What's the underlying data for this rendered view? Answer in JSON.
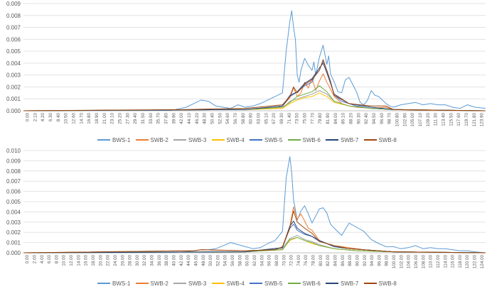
{
  "chart_data": [
    {
      "type": "line",
      "title": "",
      "xlabel": "",
      "ylabel": "",
      "ylim": [
        0,
        0.009
      ],
      "y_ticks": [
        "0.000",
        "0.001",
        "0.002",
        "0.003",
        "0.004",
        "0.005",
        "0.006",
        "0.007",
        "0.008",
        "0.009"
      ],
      "x_range": [
        0,
        124.9
      ],
      "x_ticks": [
        "0.00",
        "2.10",
        "4.20",
        "6.30",
        "8.40",
        "10.50",
        "12.60",
        "14.70",
        "16.80",
        "18.90",
        "21.00",
        "23.10",
        "25.20",
        "27.30",
        "29.40",
        "31.50",
        "33.60",
        "35.70",
        "37.80",
        "39.90",
        "42.00",
        "44.10",
        "46.20",
        "48.30",
        "50.40",
        "52.50",
        "54.60",
        "56.70",
        "58.80",
        "60.90",
        "63.00",
        "65.10",
        "67.20",
        "69.30",
        "71.40",
        "73.50",
        "75.60",
        "77.70",
        "79.80",
        "81.90",
        "84.00",
        "86.10",
        "88.20",
        "90.30",
        "92.40",
        "94.50",
        "96.60",
        "98.70",
        "100.80",
        "102.90",
        "105.00",
        "107.10",
        "109.20",
        "111.30",
        "113.40",
        "115.50",
        "117.60",
        "119.70",
        "121.80",
        "123.90"
      ],
      "legend_position": "bottom",
      "grid": "horizontal",
      "series": [
        {
          "name": "BWS-1",
          "color": "#5b9bd5",
          "x": [
            0,
            40,
            44,
            46,
            48,
            50,
            52,
            54,
            56,
            58,
            60,
            62,
            64,
            66,
            68,
            70,
            71,
            72,
            72.5,
            73,
            73.5,
            74,
            74.5,
            75,
            76,
            77,
            78,
            78.5,
            79,
            80,
            81,
            82,
            82.5,
            83,
            84,
            85,
            86,
            87,
            88,
            89,
            90,
            91,
            92,
            93,
            94,
            95,
            96,
            97,
            98,
            99,
            100,
            102,
            104,
            106,
            108,
            110,
            112,
            114,
            116,
            118,
            120,
            122,
            124.9
          ],
          "y": [
            0,
            3e-05,
            0.0003,
            0.0006,
            0.0009,
            0.0008,
            0.0004,
            0.0003,
            0.0002,
            0.0005,
            0.0003,
            0.0004,
            0.0006,
            0.0009,
            0.0012,
            0.0015,
            0.005,
            0.0075,
            0.0084,
            0.007,
            0.006,
            0.003,
            0.0024,
            0.0034,
            0.0044,
            0.0038,
            0.0034,
            0.0041,
            0.003,
            0.0045,
            0.0055,
            0.0039,
            0.0046,
            0.0031,
            0.0024,
            0.0016,
            0.0015,
            0.0026,
            0.0028,
            0.0022,
            0.0016,
            0.0007,
            0.0005,
            0.0009,
            0.0017,
            0.0013,
            0.0012,
            0.0009,
            0.0006,
            0.0004,
            0.0003,
            0.0005,
            0.0006,
            0.0007,
            0.0005,
            0.0006,
            0.0005,
            0.0005,
            0.0003,
            0.0002,
            0.0005,
            0.0003,
            0.0002
          ]
        },
        {
          "name": "SWB-2",
          "color": "#ed7d31",
          "x": [
            0,
            60,
            68,
            70,
            72,
            73,
            74,
            75,
            76,
            77,
            78,
            79,
            80,
            81,
            82,
            84,
            86,
            88,
            90,
            94,
            98,
            100,
            106,
            124.9
          ],
          "y": [
            0,
            0.0001,
            0.0002,
            0.0004,
            0.0011,
            0.0019,
            0.0012,
            0.0015,
            0.0024,
            0.0019,
            0.0027,
            0.0017,
            0.0025,
            0.0031,
            0.0024,
            0.0012,
            0.0006,
            0.0004,
            0.0003,
            0.0002,
            0.0003,
            0.0001,
            5e-05,
            0
          ]
        },
        {
          "name": "SWB-3",
          "color": "#a5a5a5",
          "x": [
            0,
            60,
            70,
            72,
            74,
            76,
            78,
            80,
            82,
            84,
            88,
            94,
            100,
            124.9
          ],
          "y": [
            0,
            0.0001,
            0.0002,
            0.0008,
            0.001,
            0.0012,
            0.0014,
            0.0017,
            0.0014,
            0.0008,
            0.0004,
            0.0002,
            0.0001,
            0
          ]
        },
        {
          "name": "SWB-4",
          "color": "#ffc000",
          "x": [
            0,
            60,
            70,
            72,
            74,
            76,
            78,
            80,
            82,
            84,
            88,
            94,
            100,
            124.9
          ],
          "y": [
            0,
            0.0001,
            0.0002,
            0.0006,
            0.0009,
            0.0011,
            0.0012,
            0.0015,
            0.0012,
            0.0007,
            0.0004,
            0.0002,
            0.0001,
            0
          ]
        },
        {
          "name": "SWB-5",
          "color": "#4472c4",
          "x": [
            0,
            60,
            70,
            72,
            74,
            76,
            78,
            79,
            80,
            81,
            82,
            83,
            84,
            86,
            88,
            90,
            94,
            100,
            124.9
          ],
          "y": [
            0,
            0.0001,
            0.0004,
            0.0013,
            0.0016,
            0.0021,
            0.0024,
            0.0031,
            0.0034,
            0.0042,
            0.0034,
            0.0025,
            0.0013,
            0.0008,
            0.0006,
            0.0004,
            0.0002,
            0.0001,
            0
          ]
        },
        {
          "name": "SWB-6",
          "color": "#70ad47",
          "x": [
            0,
            60,
            70,
            72,
            74,
            76,
            78,
            80,
            82,
            84,
            88,
            94,
            100,
            124.9
          ],
          "y": [
            0,
            0.0001,
            0.0003,
            0.0007,
            0.0012,
            0.0014,
            0.0016,
            0.0021,
            0.0016,
            0.0008,
            0.0004,
            0.0002,
            0.0001,
            0
          ]
        },
        {
          "name": "SWB-7",
          "color": "#264478",
          "x": [
            0,
            60,
            70,
            72,
            74,
            76,
            78,
            80,
            81,
            82,
            84,
            88,
            94,
            100,
            124.9
          ],
          "y": [
            0,
            0.0001,
            0.0004,
            0.0012,
            0.0016,
            0.0023,
            0.0027,
            0.0036,
            0.004,
            0.0032,
            0.0014,
            0.0006,
            0.0003,
            0.0001,
            0
          ]
        },
        {
          "name": "SWB-8",
          "color": "#9e480e",
          "x": [
            0,
            44,
            50,
            60,
            70,
            72,
            73,
            74,
            76,
            78,
            80,
            81,
            82,
            84,
            88,
            94,
            98,
            100,
            124.9
          ],
          "y": [
            0,
            0.0001,
            0.00015,
            0.0002,
            0.0005,
            0.0012,
            0.002,
            0.0015,
            0.0022,
            0.0026,
            0.0034,
            0.0043,
            0.0034,
            0.0013,
            0.0006,
            0.0004,
            0.0004,
            0.0001,
            0
          ]
        }
      ]
    },
    {
      "type": "line",
      "title": "",
      "xlabel": "",
      "ylabel": "",
      "ylim": [
        0,
        0.01
      ],
      "y_ticks": [
        "0.000",
        "0.001",
        "0.002",
        "0.003",
        "0.004",
        "0.005",
        "0.006",
        "0.007",
        "0.008",
        "0.009",
        "0.010"
      ],
      "x_range": [
        0,
        124.9
      ],
      "x_ticks": [
        "0.00",
        "2.00",
        "4.00",
        "6.00",
        "8.00",
        "10.00",
        "12.00",
        "14.00",
        "16.00",
        "18.00",
        "20.00",
        "22.00",
        "24.00",
        "26.00",
        "28.00",
        "30.00",
        "32.00",
        "34.00",
        "36.00",
        "38.00",
        "40.00",
        "42.00",
        "44.00",
        "46.00",
        "48.00",
        "50.00",
        "52.00",
        "54.00",
        "56.00",
        "58.00",
        "60.00",
        "62.00",
        "64.00",
        "66.00",
        "68.00",
        "70.00",
        "72.00",
        "74.00",
        "76.00",
        "78.00",
        "80.00",
        "82.00",
        "84.00",
        "86.00",
        "88.00",
        "90.00",
        "92.00",
        "94.00",
        "96.00",
        "98.00",
        "100.00",
        "102.00",
        "104.00",
        "106.00",
        "108.00",
        "110.00",
        "112.00",
        "114.00",
        "116.00",
        "118.00",
        "120.00",
        "122.00",
        "124.00"
      ],
      "legend_position": "bottom",
      "grid": "horizontal",
      "series": [
        {
          "name": "BWS-1",
          "color": "#5b9bd5",
          "x": [
            0,
            40,
            44,
            46,
            48,
            50,
            52,
            54,
            56,
            58,
            60,
            62,
            64,
            66,
            68,
            70,
            71,
            72,
            72.5,
            73,
            74,
            75,
            76,
            77,
            78,
            79,
            80,
            81,
            82,
            83,
            84,
            86,
            88,
            90,
            92,
            94,
            96,
            98,
            100,
            102,
            104,
            106,
            108,
            110,
            112,
            114,
            116,
            118,
            120,
            122,
            124.9
          ],
          "y": [
            0,
            3e-05,
            0.0001,
            0.0002,
            0.0003,
            0.0003,
            0.0004,
            0.0007,
            0.001,
            0.0008,
            0.0006,
            0.0004,
            0.0005,
            0.0009,
            0.0012,
            0.0021,
            0.0073,
            0.0094,
            0.0078,
            0.0052,
            0.0032,
            0.0041,
            0.0046,
            0.0038,
            0.0029,
            0.0036,
            0.0043,
            0.0044,
            0.0039,
            0.0028,
            0.0024,
            0.0017,
            0.0029,
            0.0025,
            0.0021,
            0.0013,
            0.0009,
            0.0006,
            0.0006,
            0.0004,
            0.0005,
            0.0007,
            0.0004,
            0.0005,
            0.0004,
            0.0004,
            0.0003,
            0.0002,
            0.0002,
            0.0001,
            0
          ]
        },
        {
          "name": "SWB-2",
          "color": "#ed7d31",
          "x": [
            0,
            46,
            48,
            60,
            68,
            70,
            72,
            73,
            74,
            75,
            76,
            77,
            78,
            80,
            82,
            84,
            88,
            92,
            96,
            100,
            124.9
          ],
          "y": [
            0,
            0.0002,
            0.0003,
            0.0002,
            0.0003,
            0.0006,
            0.0026,
            0.0045,
            0.0033,
            0.0038,
            0.0031,
            0.0024,
            0.0022,
            0.0012,
            0.0009,
            0.0007,
            0.0005,
            0.0003,
            0.0002,
            0.0001,
            0
          ]
        },
        {
          "name": "SWB-3",
          "color": "#a5a5a5",
          "x": [
            0,
            60,
            70,
            72,
            74,
            76,
            78,
            80,
            84,
            90,
            100,
            124.9
          ],
          "y": [
            0,
            0.0001,
            0.0004,
            0.0014,
            0.0017,
            0.0013,
            0.0011,
            0.0008,
            0.0004,
            0.0002,
            0.0001,
            0
          ]
        },
        {
          "name": "SWB-4",
          "color": "#ffc000",
          "x": [
            0,
            60,
            70,
            72,
            74,
            76,
            78,
            80,
            84,
            90,
            100,
            124.9
          ],
          "y": [
            0,
            0.0001,
            0.0003,
            0.0012,
            0.0015,
            0.0012,
            0.0009,
            0.0007,
            0.0004,
            0.0002,
            0.0001,
            0
          ]
        },
        {
          "name": "SWB-5",
          "color": "#4472c4",
          "x": [
            0,
            60,
            70,
            72,
            73,
            74,
            76,
            78,
            80,
            82,
            84,
            88,
            92,
            100,
            124.9
          ],
          "y": [
            0,
            0.0001,
            0.0005,
            0.0024,
            0.0028,
            0.0022,
            0.0018,
            0.0016,
            0.0011,
            0.0009,
            0.0006,
            0.0004,
            0.0003,
            0.0001,
            0
          ]
        },
        {
          "name": "SWB-6",
          "color": "#70ad47",
          "x": [
            0,
            60,
            70,
            72,
            74,
            76,
            78,
            80,
            84,
            90,
            100,
            124.9
          ],
          "y": [
            0,
            0.0001,
            0.0003,
            0.0013,
            0.0015,
            0.0012,
            0.001,
            0.0007,
            0.0004,
            0.0002,
            0.0001,
            0
          ]
        },
        {
          "name": "SWB-7",
          "color": "#264478",
          "x": [
            0,
            60,
            70,
            72,
            73,
            74,
            76,
            78,
            80,
            82,
            84,
            88,
            92,
            100,
            124.9
          ],
          "y": [
            0,
            0.0001,
            0.0005,
            0.0026,
            0.0031,
            0.0024,
            0.0019,
            0.0016,
            0.0012,
            0.0009,
            0.0006,
            0.0004,
            0.0003,
            0.0001,
            0
          ]
        },
        {
          "name": "SWB-8",
          "color": "#9e480e",
          "x": [
            0,
            46,
            48,
            60,
            68,
            70,
            72,
            73,
            74,
            76,
            78,
            80,
            82,
            84,
            88,
            92,
            100,
            124.9
          ],
          "y": [
            0,
            0.0002,
            0.0003,
            0.0002,
            0.0003,
            0.0006,
            0.0024,
            0.0041,
            0.003,
            0.0024,
            0.0019,
            0.0011,
            0.0009,
            0.0007,
            0.0004,
            0.0003,
            0.0001,
            0
          ]
        }
      ]
    }
  ]
}
